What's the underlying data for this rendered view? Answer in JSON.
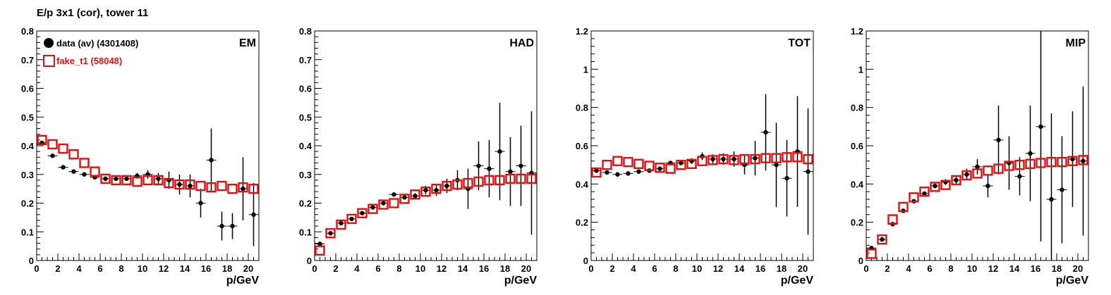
{
  "title": "E/p 3x1 (cor), tower 11",
  "colors": {
    "data": "#000000",
    "fake": "#dd1111"
  },
  "legend": {
    "data_label": "data (av) (4301408)",
    "fake_label": "fake_t1 (58048)"
  },
  "chart_data": [
    {
      "type": "scatter",
      "label": "EM",
      "xlabel": "p/GeV",
      "xlim": [
        0,
        21
      ],
      "ylim": [
        0,
        0.8
      ],
      "yticks": [
        "0",
        "0.1",
        "0.2",
        "0.3",
        "0.4",
        "0.5",
        "0.6",
        "0.7",
        "0.8"
      ],
      "ytick_values": [
        0,
        0.1,
        0.2,
        0.3,
        0.4,
        0.5,
        0.6,
        0.7,
        0.8
      ],
      "xticks": [
        "0",
        "2",
        "4",
        "6",
        "8",
        "10",
        "12",
        "14",
        "16",
        "18",
        "20"
      ],
      "xtick_values": [
        0,
        2,
        4,
        6,
        8,
        10,
        12,
        14,
        16,
        18,
        20
      ],
      "series": [
        {
          "name": "data (av) (4301408)",
          "x": [
            0.5,
            1.5,
            2.5,
            3.5,
            4.5,
            5.5,
            6.5,
            7.5,
            8.5,
            9.5,
            10.5,
            11.5,
            12.5,
            13.5,
            14.5,
            15.5,
            16.5,
            17.5,
            18.5,
            19.5,
            20.5
          ],
          "y": [
            0.41,
            0.365,
            0.325,
            0.31,
            0.3,
            0.29,
            0.285,
            0.285,
            0.285,
            0.295,
            0.3,
            0.285,
            0.28,
            0.265,
            0.26,
            0.2,
            0.35,
            0.12,
            0.12,
            0.25,
            0.16
          ],
          "err": [
            0.005,
            0.004,
            0.004,
            0.004,
            0.004,
            0.004,
            0.005,
            0.005,
            0.007,
            0.01,
            0.015,
            0.02,
            0.03,
            0.035,
            0.04,
            0.05,
            0.11,
            0.05,
            0.045,
            0.11,
            0.11
          ]
        },
        {
          "name": "fake_t1 (58048)",
          "x": [
            0.5,
            1.5,
            2.5,
            3.5,
            4.5,
            5.5,
            6.5,
            7.5,
            8.5,
            9.5,
            10.5,
            11.5,
            12.5,
            13.5,
            14.5,
            15.5,
            16.5,
            17.5,
            18.5,
            19.5,
            20.5
          ],
          "y": [
            0.42,
            0.405,
            0.39,
            0.37,
            0.34,
            0.31,
            0.285,
            0.28,
            0.28,
            0.275,
            0.28,
            0.28,
            0.27,
            0.265,
            0.265,
            0.26,
            0.255,
            0.26,
            0.25,
            0.255,
            0.25
          ],
          "err": []
        }
      ]
    },
    {
      "type": "scatter",
      "label": "HAD",
      "xlabel": "p/GeV",
      "xlim": [
        0,
        21
      ],
      "ylim": [
        0,
        0.8
      ],
      "yticks": [
        "0",
        "0.1",
        "0.2",
        "0.3",
        "0.4",
        "0.5",
        "0.6",
        "0.7",
        "0.8"
      ],
      "ytick_values": [
        0,
        0.1,
        0.2,
        0.3,
        0.4,
        0.5,
        0.6,
        0.7,
        0.8
      ],
      "xticks": [
        "0",
        "2",
        "4",
        "6",
        "8",
        "10",
        "12",
        "14",
        "16",
        "18",
        "20"
      ],
      "xtick_values": [
        0,
        2,
        4,
        6,
        8,
        10,
        12,
        14,
        16,
        18,
        20
      ],
      "series": [
        {
          "name": "data (av) (4301408)",
          "x": [
            0.5,
            1.5,
            2.5,
            3.5,
            4.5,
            5.5,
            6.5,
            7.5,
            8.5,
            9.5,
            10.5,
            11.5,
            12.5,
            13.5,
            14.5,
            15.5,
            16.5,
            17.5,
            18.5,
            19.5,
            20.5
          ],
          "y": [
            0.058,
            0.095,
            0.13,
            0.145,
            0.165,
            0.185,
            0.2,
            0.23,
            0.22,
            0.225,
            0.245,
            0.245,
            0.26,
            0.28,
            0.25,
            0.33,
            0.32,
            0.38,
            0.31,
            0.33,
            0.305
          ],
          "err": [
            0.004,
            0.004,
            0.004,
            0.004,
            0.004,
            0.004,
            0.005,
            0.005,
            0.007,
            0.01,
            0.015,
            0.02,
            0.025,
            0.035,
            0.07,
            0.085,
            0.1,
            0.17,
            0.12,
            0.14,
            0.215
          ]
        },
        {
          "name": "fake_t1 (58048)",
          "x": [
            0.5,
            1.5,
            2.5,
            3.5,
            4.5,
            5.5,
            6.5,
            7.5,
            8.5,
            9.5,
            10.5,
            11.5,
            12.5,
            13.5,
            14.5,
            15.5,
            16.5,
            17.5,
            18.5,
            19.5,
            20.5
          ],
          "y": [
            0.035,
            0.095,
            0.125,
            0.145,
            0.165,
            0.18,
            0.195,
            0.2,
            0.215,
            0.23,
            0.24,
            0.25,
            0.26,
            0.265,
            0.27,
            0.275,
            0.28,
            0.28,
            0.285,
            0.285,
            0.285
          ],
          "err": []
        }
      ]
    },
    {
      "type": "scatter",
      "label": "TOT",
      "xlabel": "p/GeV",
      "xlim": [
        0,
        21
      ],
      "ylim": [
        0,
        1.2
      ],
      "yticks": [
        "0",
        "0.2",
        "0.4",
        "0.6",
        "0.8",
        "1",
        "1.2"
      ],
      "ytick_values": [
        0,
        0.2,
        0.4,
        0.6,
        0.8,
        1.0,
        1.2
      ],
      "xticks": [
        "0",
        "2",
        "4",
        "6",
        "8",
        "10",
        "12",
        "14",
        "16",
        "18",
        "20"
      ],
      "xtick_values": [
        0,
        2,
        4,
        6,
        8,
        10,
        12,
        14,
        16,
        18,
        20
      ],
      "series": [
        {
          "name": "data (av) (4301408)",
          "x": [
            0.5,
            1.5,
            2.5,
            3.5,
            4.5,
            5.5,
            6.5,
            7.5,
            8.5,
            9.5,
            10.5,
            11.5,
            12.5,
            13.5,
            14.5,
            15.5,
            16.5,
            17.5,
            18.5,
            19.5,
            20.5
          ],
          "y": [
            0.47,
            0.46,
            0.45,
            0.455,
            0.465,
            0.47,
            0.48,
            0.51,
            0.51,
            0.52,
            0.545,
            0.53,
            0.53,
            0.53,
            0.5,
            0.535,
            0.67,
            0.5,
            0.43,
            0.57,
            0.465
          ],
          "err": [
            0.005,
            0.005,
            0.005,
            0.005,
            0.005,
            0.006,
            0.007,
            0.008,
            0.01,
            0.015,
            0.02,
            0.025,
            0.03,
            0.04,
            0.05,
            0.09,
            0.2,
            0.22,
            0.2,
            0.29,
            0.33
          ]
        },
        {
          "name": "fake_t1 (58048)",
          "x": [
            0.5,
            1.5,
            2.5,
            3.5,
            4.5,
            5.5,
            6.5,
            7.5,
            8.5,
            9.5,
            10.5,
            11.5,
            12.5,
            13.5,
            14.5,
            15.5,
            16.5,
            17.5,
            18.5,
            19.5,
            20.5
          ],
          "y": [
            0.46,
            0.5,
            0.52,
            0.515,
            0.505,
            0.495,
            0.485,
            0.48,
            0.5,
            0.505,
            0.52,
            0.525,
            0.53,
            0.525,
            0.53,
            0.53,
            0.535,
            0.535,
            0.54,
            0.54,
            0.53
          ],
          "err": []
        }
      ]
    },
    {
      "type": "scatter",
      "label": "MIP",
      "xlabel": "p/GeV",
      "xlim": [
        0,
        21
      ],
      "ylim": [
        0,
        1.2
      ],
      "yticks": [
        "0",
        "0.2",
        "0.4",
        "0.6",
        "0.8",
        "1",
        "1.2"
      ],
      "ytick_values": [
        0,
        0.2,
        0.4,
        0.6,
        0.8,
        1.0,
        1.2
      ],
      "xticks": [
        "0",
        "2",
        "4",
        "6",
        "8",
        "10",
        "12",
        "14",
        "16",
        "18",
        "20"
      ],
      "xtick_values": [
        0,
        2,
        4,
        6,
        8,
        10,
        12,
        14,
        16,
        18,
        20
      ],
      "series": [
        {
          "name": "data (av) (4301408)",
          "x": [
            0.5,
            1.5,
            2.5,
            3.5,
            4.5,
            5.5,
            6.5,
            7.5,
            8.5,
            9.5,
            10.5,
            11.5,
            12.5,
            13.5,
            14.5,
            15.5,
            16.5,
            17.5,
            18.5,
            19.5,
            20.5
          ],
          "y": [
            0.065,
            0.11,
            0.19,
            0.26,
            0.31,
            0.35,
            0.39,
            0.41,
            0.42,
            0.45,
            0.49,
            0.39,
            0.63,
            0.51,
            0.44,
            0.56,
            0.7,
            0.32,
            0.37,
            0.53,
            0.52
          ],
          "err": [
            0.006,
            0.006,
            0.006,
            0.007,
            0.008,
            0.01,
            0.012,
            0.015,
            0.02,
            0.03,
            0.04,
            0.06,
            0.18,
            0.14,
            0.1,
            0.25,
            0.6,
            0.45,
            0.28,
            0.25,
            0.39
          ]
        },
        {
          "name": "fake_t1 (58048)",
          "x": [
            0.5,
            1.5,
            2.5,
            3.5,
            4.5,
            5.5,
            6.5,
            7.5,
            8.5,
            9.5,
            10.5,
            11.5,
            12.5,
            13.5,
            14.5,
            15.5,
            16.5,
            17.5,
            18.5,
            19.5,
            20.5
          ],
          "y": [
            0.035,
            0.11,
            0.215,
            0.28,
            0.33,
            0.36,
            0.385,
            0.395,
            0.42,
            0.445,
            0.455,
            0.47,
            0.48,
            0.495,
            0.5,
            0.505,
            0.51,
            0.515,
            0.515,
            0.52,
            0.525
          ],
          "err": []
        }
      ]
    }
  ]
}
